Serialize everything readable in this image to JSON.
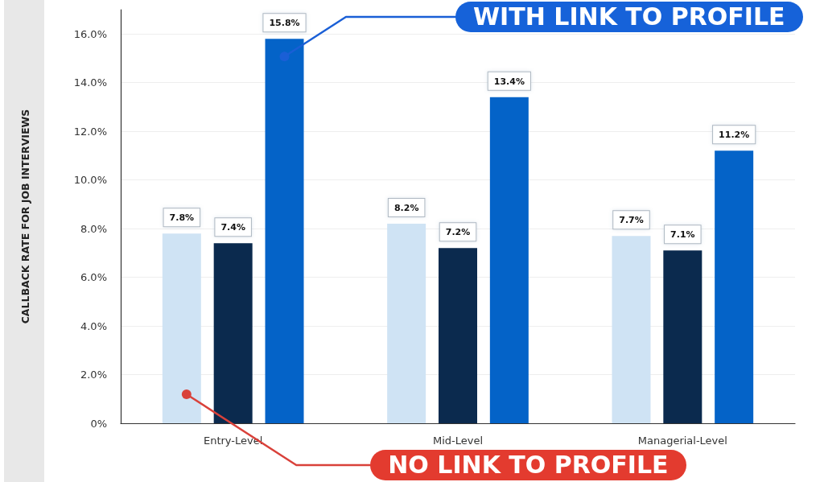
{
  "chart_data": {
    "type": "bar",
    "ylabel": "CALLBACK RATE FOR JOB INTERVIEWS",
    "categories": [
      "Entry-Level",
      "Mid-Level",
      "Managerial-Level"
    ],
    "series": [
      {
        "name": "NO LINK TO PROFILE",
        "color": "#cfe3f4",
        "values": [
          7.8,
          8.2,
          7.7
        ],
        "value_labels": [
          "7.8%",
          "8.2%",
          "7.7%"
        ]
      },
      {
        "color": "#0b2a4e",
        "values": [
          7.4,
          7.2,
          7.1
        ],
        "value_labels": [
          "7.4%",
          "7.2%",
          "7.1%"
        ]
      },
      {
        "name": "WITH LINK TO PROFILE",
        "color": "#0463c8",
        "values": [
          15.8,
          13.4,
          11.2
        ],
        "value_labels": [
          "15.8%",
          "13.4%",
          "11.2%"
        ]
      }
    ],
    "ylim": [
      0,
      17
    ],
    "yticks": [
      {
        "value": 0,
        "label": "0%"
      },
      {
        "value": 2,
        "label": "2.0%"
      },
      {
        "value": 4,
        "label": "4.0%"
      },
      {
        "value": 6,
        "label": "6.0%"
      },
      {
        "value": 8,
        "label": "8.0%"
      },
      {
        "value": 10,
        "label": "10.0%"
      },
      {
        "value": 12,
        "label": "12.0%"
      },
      {
        "value": 14,
        "label": "14.0%"
      },
      {
        "value": 16,
        "label": "16.0%"
      }
    ],
    "grid": "y"
  }
}
